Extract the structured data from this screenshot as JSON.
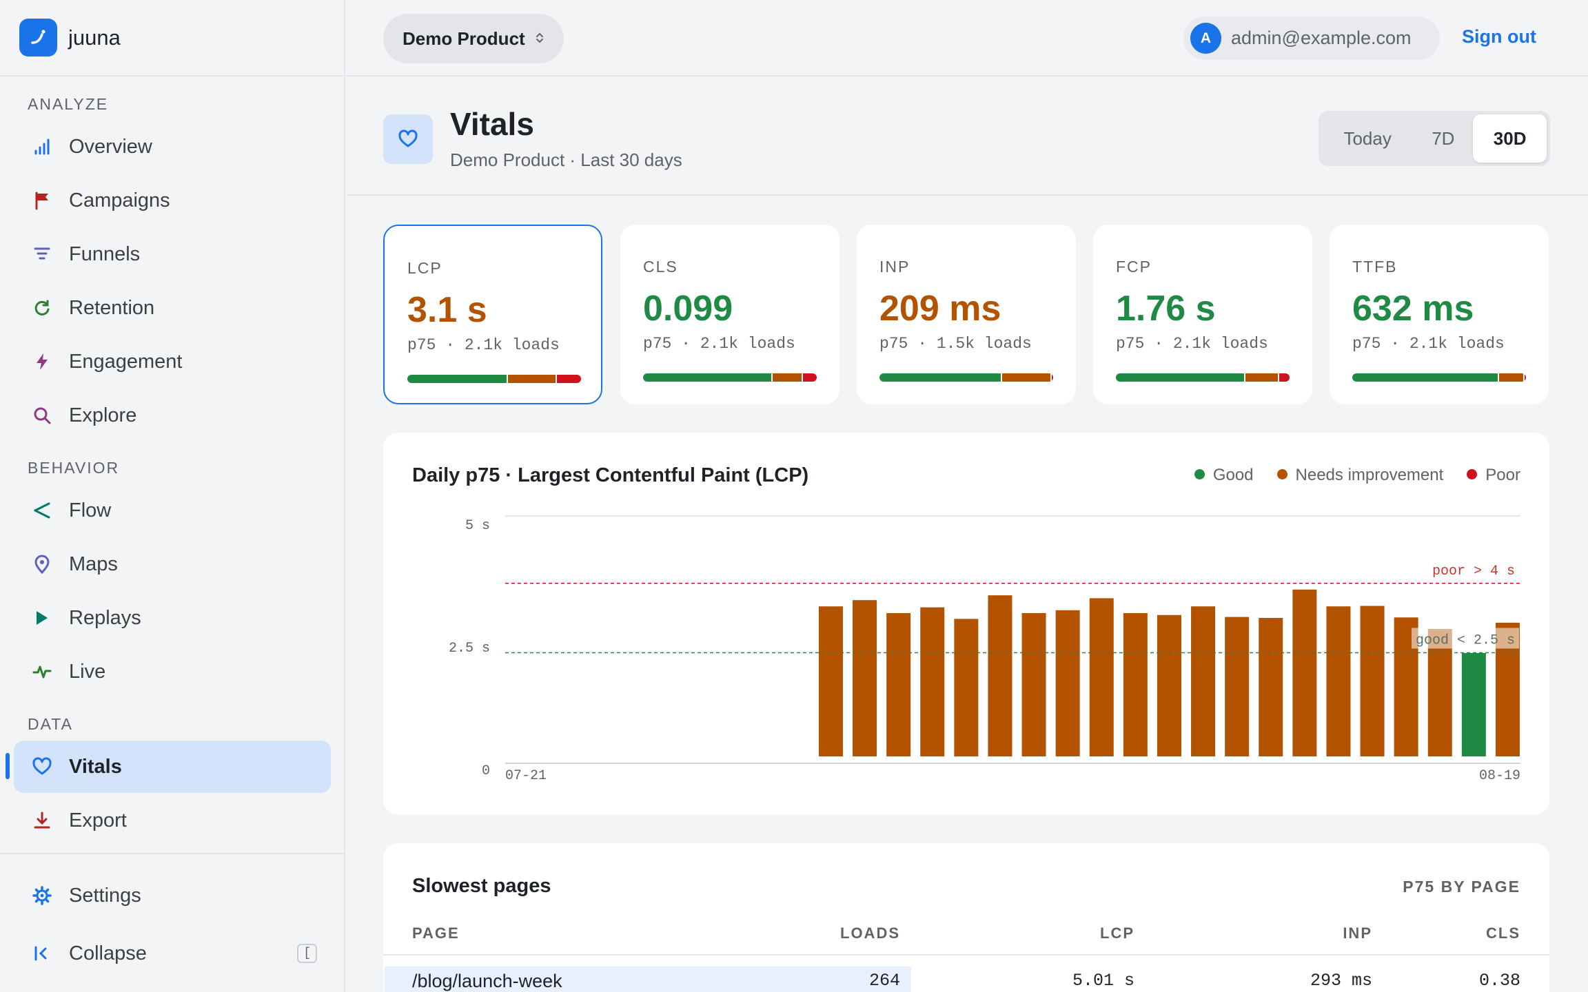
{
  "brand": {
    "name": "juuna"
  },
  "sidebar": {
    "sections": [
      {
        "label": "ANALYZE"
      },
      {
        "label": "BEHAVIOR"
      },
      {
        "label": "DATA"
      }
    ],
    "items": [
      {
        "label": "Overview",
        "icon": "bar-chart-icon",
        "color": "#1a73e8"
      },
      {
        "label": "Campaigns",
        "icon": "flag-icon",
        "color": "#b3261e"
      },
      {
        "label": "Funnels",
        "icon": "funnel-icon",
        "color": "#5b5fc7"
      },
      {
        "label": "Retention",
        "icon": "refresh-icon",
        "color": "#2e7d32"
      },
      {
        "label": "Engagement",
        "icon": "lightning-icon",
        "color": "#8e3a80"
      },
      {
        "label": "Explore",
        "icon": "search-icon",
        "color": "#8e3a80"
      },
      {
        "label": "Flow",
        "icon": "share-icon",
        "color": "#00796b"
      },
      {
        "label": "Maps",
        "icon": "pin-icon",
        "color": "#5b5fc7"
      },
      {
        "label": "Replays",
        "icon": "play-icon",
        "color": "#00796b"
      },
      {
        "label": "Live",
        "icon": "pulse-icon",
        "color": "#2e7d32"
      },
      {
        "label": "Vitals",
        "icon": "heart-icon",
        "color": "#1a73e8",
        "active": true
      },
      {
        "label": "Export",
        "icon": "download-icon",
        "color": "#b3261e"
      }
    ],
    "settings_label": "Settings",
    "collapse_label": "Collapse",
    "collapse_shortcut": "["
  },
  "topbar": {
    "product": "Demo Product",
    "avatar_letter": "A",
    "user_email": "admin@example.com",
    "signout": "Sign out"
  },
  "header": {
    "title": "Vitals",
    "subtitle": "Demo Product · Last 30 days",
    "ranges": [
      "Today",
      "7D",
      "30D"
    ],
    "selected_range": "30D"
  },
  "colors": {
    "good": "#1e8a44",
    "needs_improvement": "#b35300",
    "poor": "#d0111d",
    "accent": "#1a73e8"
  },
  "metrics": [
    {
      "label": "LCP",
      "value": "3.1 s",
      "meta": "p75 · 2.1k loads",
      "status": "needs_improvement",
      "good": 0.58,
      "ni": 0.28,
      "poor": 0.14,
      "selected": true
    },
    {
      "label": "CLS",
      "value": "0.099",
      "meta": "p75 · 2.1k loads",
      "status": "good",
      "good": 0.75,
      "ni": 0.17,
      "poor": 0.08
    },
    {
      "label": "INP",
      "value": "209 ms",
      "meta": "p75 · 1.5k loads",
      "status": "needs_improvement",
      "good": 0.71,
      "ni": 0.28,
      "poor": 0.01
    },
    {
      "label": "FCP",
      "value": "1.76 s",
      "meta": "p75 · 2.1k loads",
      "status": "good",
      "good": 0.75,
      "ni": 0.19,
      "poor": 0.06
    },
    {
      "label": "TTFB",
      "value": "632 ms",
      "meta": "p75 · 2.1k loads",
      "status": "good",
      "good": 0.85,
      "ni": 0.14,
      "poor": 0.01
    }
  ],
  "chart": {
    "title": "Daily p75 · Largest Contentful Paint (LCP)",
    "legend": [
      "Good",
      "Needs improvement",
      "Poor"
    ],
    "poor_label": "poor > 4 s",
    "good_label": "good < 2.5 s"
  },
  "chart_data": {
    "type": "bar",
    "x_range": [
      "07-21",
      "08-19"
    ],
    "y_ticks": [
      "5 s",
      "2.5 s",
      "0"
    ],
    "ylim": [
      0,
      5
    ],
    "thresholds": {
      "poor": 4.0,
      "good": 2.5
    },
    "values": [
      null,
      null,
      null,
      null,
      null,
      null,
      null,
      null,
      null,
      3.12,
      3.25,
      2.98,
      3.1,
      2.86,
      3.35,
      2.98,
      3.04,
      3.29,
      2.98,
      2.94,
      3.12,
      2.9,
      2.88,
      3.47,
      3.12,
      3.13,
      2.89,
      2.65,
      2.15,
      2.78
    ],
    "status": [
      "",
      "",
      "",
      "",
      "",
      "",
      "",
      "",
      "",
      "ni",
      "ni",
      "ni",
      "ni",
      "ni",
      "ni",
      "ni",
      "ni",
      "ni",
      "ni",
      "ni",
      "ni",
      "ni",
      "ni",
      "ni",
      "ni",
      "ni",
      "ni",
      "ni",
      "good",
      "ni"
    ]
  },
  "table": {
    "title": "Slowest pages",
    "tag": "P75 BY PAGE",
    "headers": [
      "PAGE",
      "LOADS",
      "LCP",
      "INP",
      "CLS"
    ],
    "rows": [
      {
        "page": "/blog/launch-week",
        "loads": "264",
        "lcp": "5.01 s",
        "inp": "293 ms",
        "cls": "0.38"
      }
    ]
  }
}
